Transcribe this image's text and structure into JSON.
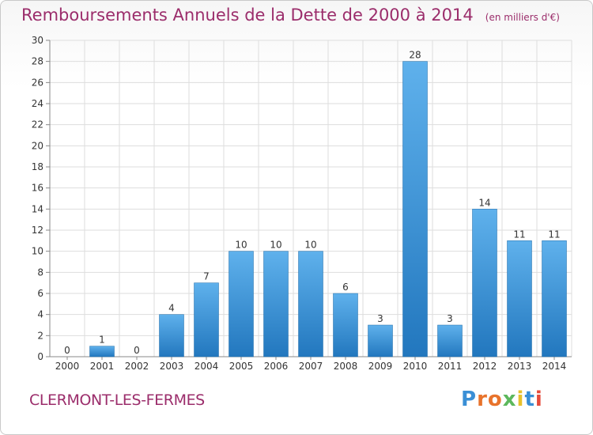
{
  "header": {
    "title": "Remboursements Annuels de la Dette de 2000 à 2014",
    "unit": "(en milliers d'€)"
  },
  "footer": {
    "commune": "CLERMONT-LES-FERMES",
    "logo_text": "Proxiti",
    "logo_colors": [
      "#3a8fd6",
      "#e8732c",
      "#e8732c",
      "#5cb85c",
      "#e8c12c",
      "#3a8fd6",
      "#e64b3c"
    ]
  },
  "colors": {
    "accent": "#9b2d6b",
    "bar_top": "#5fb1ec",
    "bar_bottom": "#2277be",
    "grid": "#dddddd"
  },
  "chart_data": {
    "type": "bar",
    "title": "Remboursements Annuels de la Dette de 2000 à 2014",
    "unit": "(en milliers d'€)",
    "categories": [
      "2000",
      "2001",
      "2002",
      "2003",
      "2004",
      "2005",
      "2006",
      "2007",
      "2008",
      "2009",
      "2010",
      "2011",
      "2012",
      "2013",
      "2014"
    ],
    "values": [
      0,
      1,
      0,
      4,
      7,
      10,
      10,
      10,
      6,
      3,
      28,
      3,
      14,
      11,
      11
    ],
    "ylim": [
      0,
      30
    ],
    "yticks": [
      0,
      2,
      4,
      6,
      8,
      10,
      12,
      14,
      16,
      18,
      20,
      22,
      24,
      26,
      28,
      30
    ],
    "grid": true,
    "legend": "none",
    "data_labels": true
  }
}
